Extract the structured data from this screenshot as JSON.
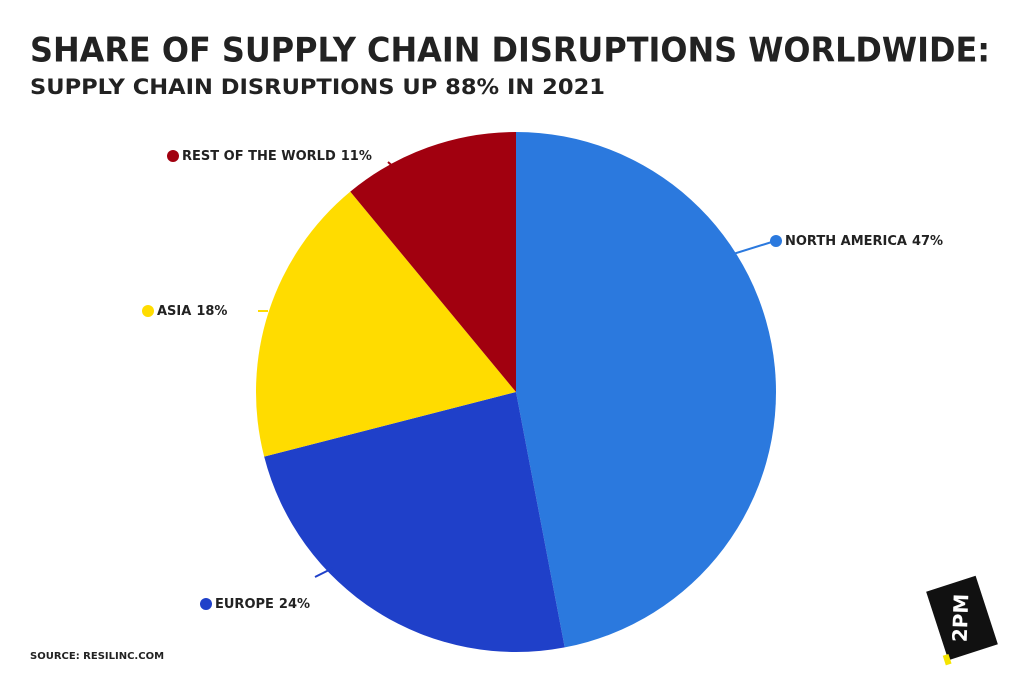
{
  "chart_data": {
    "type": "pie",
    "title": "SHARE OF SUPPLY CHAIN DISRUPTIONS WORLDWIDE:",
    "subtitle": "SUPPLY CHAIN DISRUPTIONS UP 88% IN 2021",
    "categories": [
      "NORTH AMERICA",
      "EUROPE",
      "ASIA",
      "REST OF THE WORLD"
    ],
    "values": [
      47,
      24,
      18,
      11
    ],
    "value_labels": [
      "47%",
      "24%",
      "18%",
      "11%"
    ],
    "colors": [
      "#2b79de",
      "#1f40c9",
      "#ffdc00",
      "#a1000f"
    ],
    "source": "SOURCE: RESILINC.COM",
    "logo": "2PM"
  }
}
